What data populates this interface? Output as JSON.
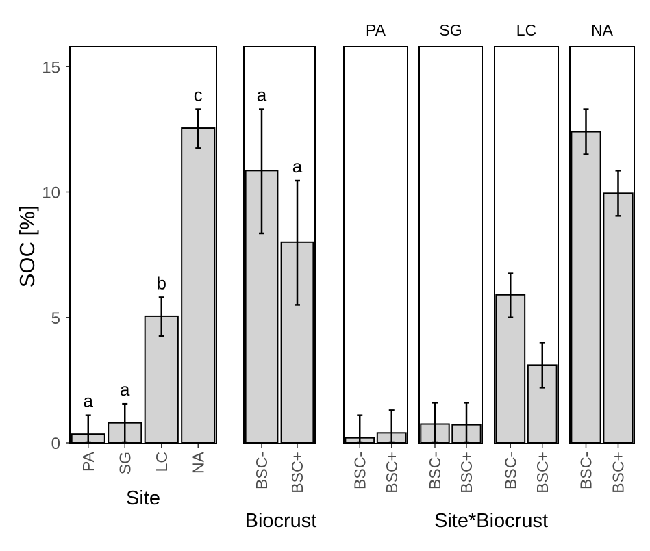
{
  "colors": {
    "bar_fill": "#d3d3d3",
    "bar_stroke": "#000000",
    "axis_text": "#4d4d4d",
    "text": "#000000"
  },
  "chart_data": {
    "type": "bar",
    "ylabel": "SOC [%]",
    "ylim": [
      0,
      16
    ],
    "yticks": [
      0,
      5,
      10,
      15
    ],
    "grid": false,
    "error_bars": true,
    "panels": [
      {
        "xlabel": "Site",
        "facet_labels": [],
        "categories": [
          "PA",
          "SG",
          "LC",
          "NA"
        ],
        "values": [
          0.35,
          0.8,
          5.05,
          12.55
        ],
        "err_low": [
          0.0,
          0.0,
          4.25,
          11.75
        ],
        "err_high": [
          1.1,
          1.55,
          5.8,
          13.3
        ],
        "letters": [
          "a",
          "a",
          "b",
          "c"
        ]
      },
      {
        "xlabel": "Biocrust",
        "facet_labels": [],
        "categories": [
          "BSC-",
          "BSC+"
        ],
        "values": [
          10.85,
          8.0
        ],
        "err_low": [
          8.35,
          5.5
        ],
        "err_high": [
          13.3,
          10.45
        ],
        "letters": [
          "a",
          "a"
        ]
      },
      {
        "xlabel": "Site*Biocrust",
        "facets": [
          {
            "label": "PA",
            "categories": [
              "BSC-",
              "BSC+"
            ],
            "values": [
              0.2,
              0.4
            ],
            "err_low": [
              0.0,
              0.0
            ],
            "err_high": [
              1.1,
              1.3
            ]
          },
          {
            "label": "SG",
            "categories": [
              "BSC-",
              "BSC+"
            ],
            "values": [
              0.75,
              0.72
            ],
            "err_low": [
              0.0,
              0.0
            ],
            "err_high": [
              1.6,
              1.6
            ]
          },
          {
            "label": "LC",
            "categories": [
              "BSC-",
              "BSC+"
            ],
            "values": [
              5.9,
              3.1
            ],
            "err_low": [
              5.0,
              2.2
            ],
            "err_high": [
              6.75,
              4.0
            ]
          },
          {
            "label": "NA",
            "categories": [
              "BSC-",
              "BSC+"
            ],
            "values": [
              12.4,
              9.95
            ],
            "err_low": [
              11.5,
              9.05
            ],
            "err_high": [
              13.3,
              10.85
            ]
          }
        ]
      }
    ]
  }
}
